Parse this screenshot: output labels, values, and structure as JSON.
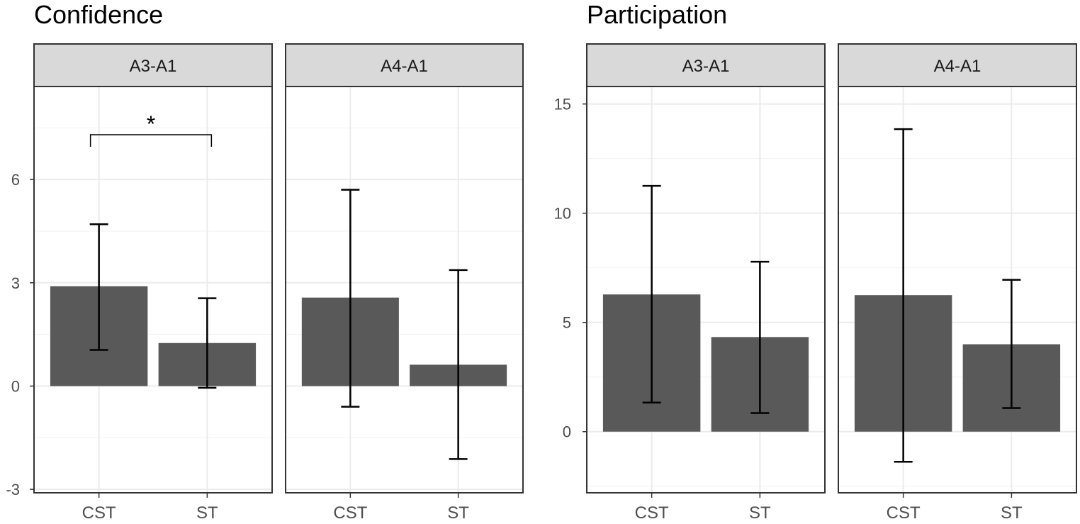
{
  "chart_data": [
    {
      "type": "bar",
      "title": "Confidence",
      "categories": [
        "CST",
        "ST"
      ],
      "yticks": [
        -3,
        0,
        3,
        6
      ],
      "ytick_labels": [
        "-3",
        "0",
        "3",
        "6"
      ],
      "ylim": [
        -3.1,
        8.7
      ],
      "grid": true,
      "facets": [
        {
          "label": "A3-A1",
          "values": [
            2.9,
            1.25
          ],
          "error_low": [
            1.05,
            -0.05
          ],
          "error_high": [
            4.7,
            2.55
          ],
          "annotation": {
            "text": "*",
            "from": "CST",
            "to": "ST",
            "y": 7.3,
            "drop": 0.35
          }
        },
        {
          "label": "A4-A1",
          "values": [
            2.57,
            0.62
          ],
          "error_low": [
            -0.6,
            -2.12
          ],
          "error_high": [
            5.7,
            3.37
          ]
        }
      ]
    },
    {
      "type": "bar",
      "title": "Participation",
      "categories": [
        "CST",
        "ST"
      ],
      "yticks": [
        0,
        5,
        10,
        15
      ],
      "ytick_labels": [
        "0",
        "5",
        "10",
        "15"
      ],
      "ylim": [
        -2.8,
        15.8
      ],
      "grid": true,
      "facets": [
        {
          "label": "A3-A1",
          "values": [
            6.28,
            4.33
          ],
          "error_low": [
            1.33,
            0.85
          ],
          "error_high": [
            11.25,
            7.78
          ]
        },
        {
          "label": "A4-A1",
          "values": [
            6.25,
            4.0
          ],
          "error_low": [
            -1.38,
            1.08
          ],
          "error_high": [
            13.85,
            6.95
          ]
        }
      ]
    }
  ]
}
